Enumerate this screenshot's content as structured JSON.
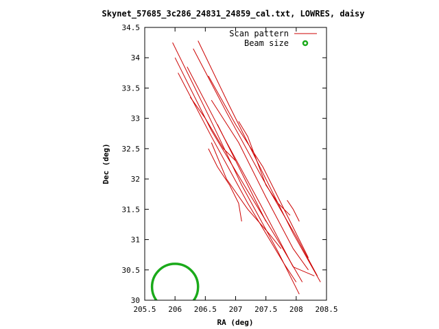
{
  "chart_data": {
    "type": "line",
    "title": "Skynet_57685_3c286_24831_24859_cal.txt, LOWRES, daisy",
    "xlabel": "RA (deg)",
    "ylabel": "Dec (deg)",
    "xlim": [
      205.5,
      208.5
    ],
    "ylim": [
      30,
      34.5
    ],
    "xticks": [
      205.5,
      206,
      206.5,
      207,
      207.5,
      208,
      208.5
    ],
    "xtick_labels": [
      "205.5",
      "206",
      "206.5",
      "207",
      "207.5",
      "208",
      "208.5"
    ],
    "yticks": [
      30,
      30.5,
      31,
      31.5,
      32,
      32.5,
      33,
      33.5,
      34,
      34.5
    ],
    "ytick_labels": [
      "30",
      "30.5",
      "31",
      "31.5",
      "32",
      "32.5",
      "33",
      "33.5",
      "34",
      "34.5"
    ],
    "legend": {
      "placement": "top-right",
      "entries": [
        {
          "label": "Scan pattern",
          "color": "#cc0000",
          "style": "line"
        },
        {
          "label": "Beam size",
          "color": "#1aaa1a",
          "style": "circle"
        }
      ]
    },
    "series": [
      {
        "name": "Scan pattern",
        "color": "#cc0000",
        "segments": [
          [
            [
              205.96,
              34.25
            ],
            [
              206.55,
              33.05
            ],
            [
              207.1,
              31.9
            ],
            [
              207.7,
              30.8
            ],
            [
              208.05,
              30.1
            ]
          ],
          [
            [
              206.38,
              34.28
            ],
            [
              206.9,
              33.2
            ],
            [
              207.45,
              32.1
            ],
            [
              207.95,
              31.1
            ],
            [
              208.4,
              30.3
            ]
          ],
          [
            [
              206.05,
              33.75
            ],
            [
              206.6,
              32.7
            ],
            [
              207.2,
              31.6
            ],
            [
              207.8,
              30.6
            ],
            [
              208.0,
              30.3
            ]
          ],
          [
            [
              206.2,
              33.85
            ],
            [
              206.8,
              32.7
            ],
            [
              207.4,
              31.6
            ],
            [
              207.95,
              30.55
            ],
            [
              208.3,
              30.4
            ]
          ],
          [
            [
              206.0,
              34.0
            ],
            [
              206.6,
              32.8
            ],
            [
              207.2,
              31.8
            ],
            [
              207.75,
              30.9
            ],
            [
              208.1,
              30.3
            ]
          ],
          [
            [
              206.3,
              34.15
            ],
            [
              206.85,
              33.1
            ],
            [
              207.45,
              32.0
            ],
            [
              208.0,
              31.05
            ],
            [
              208.35,
              30.4
            ]
          ],
          [
            [
              206.55,
              33.7
            ],
            [
              207.0,
              32.9
            ],
            [
              207.45,
              32.2
            ],
            [
              207.9,
              31.3
            ],
            [
              208.2,
              30.7
            ]
          ],
          [
            [
              206.6,
              33.3
            ],
            [
              207.05,
              32.6
            ],
            [
              207.5,
              31.7
            ],
            [
              207.95,
              30.85
            ],
            [
              208.2,
              30.5
            ]
          ],
          [
            [
              206.6,
              32.6
            ],
            [
              206.85,
              32.0
            ],
            [
              207.2,
              31.5
            ],
            [
              207.55,
              31.1
            ],
            [
              207.75,
              30.85
            ]
          ],
          [
            [
              206.55,
              32.5
            ],
            [
              206.7,
              32.2
            ],
            [
              206.9,
              31.9
            ],
            [
              207.05,
              31.6
            ],
            [
              207.1,
              31.3
            ]
          ],
          [
            [
              206.25,
              33.35
            ],
            [
              206.5,
              33.0
            ],
            [
              206.8,
              32.5
            ],
            [
              207.0,
              32.3
            ]
          ],
          [
            [
              207.05,
              32.95
            ],
            [
              207.2,
              32.7
            ],
            [
              207.35,
              32.3
            ],
            [
              207.5,
              31.9
            ],
            [
              207.7,
              31.6
            ],
            [
              207.9,
              31.4
            ]
          ],
          [
            [
              206.7,
              32.9
            ],
            [
              206.95,
              32.4
            ],
            [
              207.15,
              32.0
            ],
            [
              207.35,
              31.6
            ],
            [
              207.5,
              31.3
            ]
          ],
          [
            [
              207.85,
              31.65
            ],
            [
              207.95,
              31.5
            ],
            [
              208.05,
              31.3
            ]
          ]
        ]
      },
      {
        "name": "Beam size",
        "color": "#1aaa1a",
        "type": "circle",
        "center": [
          206.0,
          30.22
        ],
        "radius_deg": 0.38
      }
    ]
  }
}
